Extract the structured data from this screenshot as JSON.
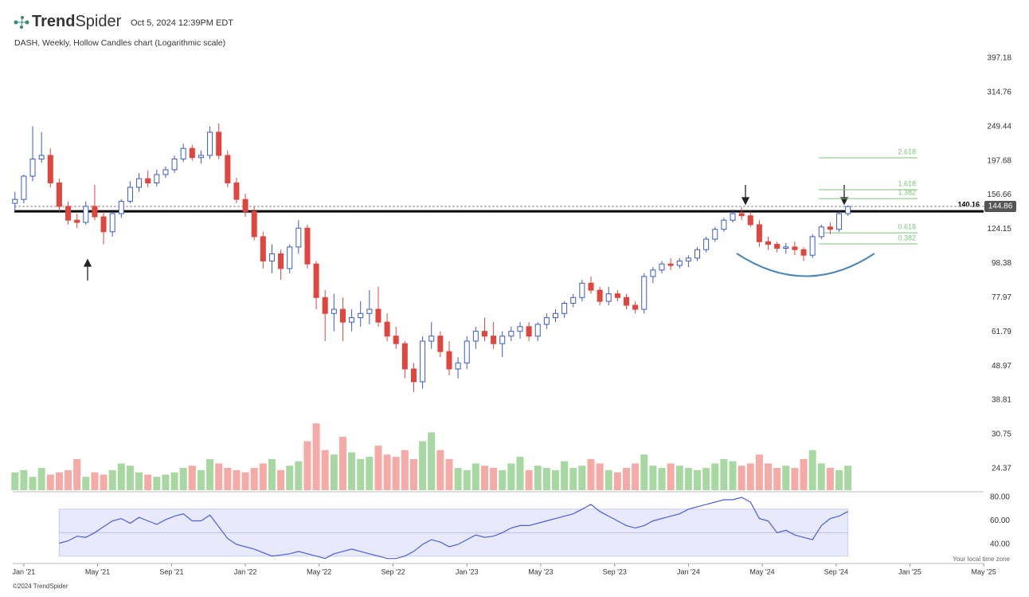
{
  "chart_data": {
    "type": "candlestick",
    "brand": [
      "Trend",
      "Spider"
    ],
    "timestamp": "Oct 5, 2024 12:39PM EDT",
    "title": "DASH, Weekly, Hollow Candles chart (Logarithmic scale)",
    "footer": "©2024 TrendSpider",
    "timezone_note": "Your local time zone",
    "log_scale": true,
    "up_color": "#3a5cc4",
    "down_color": "#e0453e",
    "xlim": [
      2020.95,
      2025.3
    ],
    "xticks": [
      {
        "value": 2021,
        "label": "Jan '21"
      },
      {
        "value": 2021.333,
        "label": "May '21"
      },
      {
        "value": 2021.667,
        "label": "Sep '21"
      },
      {
        "value": 2022,
        "label": "Jan '22"
      },
      {
        "value": 2022.333,
        "label": "May '22"
      },
      {
        "value": 2022.667,
        "label": "Sep '22"
      },
      {
        "value": 2023,
        "label": "Jan '23"
      },
      {
        "value": 2023.333,
        "label": "May '23"
      },
      {
        "value": 2023.667,
        "label": "Sep '23"
      },
      {
        "value": 2024,
        "label": "Jan '24"
      },
      {
        "value": 2024.333,
        "label": "May '24"
      },
      {
        "value": 2024.667,
        "label": "Sep '24"
      },
      {
        "value": 2025,
        "label": "Jan '25"
      },
      {
        "value": 2025.333,
        "label": "May '25"
      }
    ],
    "ylim": [
      21.05,
      426
    ],
    "yticks": [
      397.18,
      314.76,
      249.44,
      197.68,
      156.66,
      124.15,
      98.38,
      77.97,
      61.79,
      48.97,
      38.81,
      30.75,
      24.37
    ],
    "candles": {
      "x": [
        2020.96,
        2021,
        2021.04,
        2021.08,
        2021.12,
        2021.16,
        2021.2,
        2021.24,
        2021.28,
        2021.32,
        2021.36,
        2021.4,
        2021.44,
        2021.48,
        2021.52,
        2021.56,
        2021.6,
        2021.64,
        2021.68,
        2021.72,
        2021.76,
        2021.8,
        2021.84,
        2021.88,
        2021.92,
        2021.96,
        2022,
        2022.04,
        2022.08,
        2022.12,
        2022.16,
        2022.2,
        2022.24,
        2022.28,
        2022.32,
        2022.36,
        2022.4,
        2022.44,
        2022.48,
        2022.52,
        2022.56,
        2022.6,
        2022.64,
        2022.68,
        2022.72,
        2022.76,
        2022.8,
        2022.84,
        2022.88,
        2022.92,
        2022.96,
        2023,
        2023.04,
        2023.08,
        2023.12,
        2023.16,
        2023.2,
        2023.24,
        2023.28,
        2023.32,
        2023.36,
        2023.4,
        2023.44,
        2023.48,
        2023.52,
        2023.56,
        2023.6,
        2023.64,
        2023.68,
        2023.72,
        2023.76,
        2023.8,
        2023.84,
        2023.88,
        2023.92,
        2023.96,
        2024,
        2024.04,
        2024.08,
        2024.12,
        2024.16,
        2024.2,
        2024.24,
        2024.28,
        2024.32,
        2024.36,
        2024.4,
        2024.44,
        2024.48,
        2024.52,
        2024.56,
        2024.6,
        2024.64,
        2024.68,
        2024.72
      ],
      "open": [
        148,
        152,
        178,
        200,
        205,
        170,
        145,
        132,
        130,
        145,
        135,
        122,
        138,
        150,
        165,
        175,
        170,
        180,
        186,
        200,
        215,
        202,
        205,
        240,
        205,
        170,
        152,
        140,
        118,
        100,
        105,
        95,
        110,
        125,
        98,
        78,
        70,
        72,
        66,
        68,
        70,
        72,
        66,
        60,
        57,
        48,
        44,
        58,
        60,
        54,
        48,
        50,
        58,
        62,
        60,
        57,
        60,
        62,
        64,
        60,
        65,
        68,
        70,
        75,
        78,
        86,
        82,
        76,
        80,
        78,
        74,
        72,
        90,
        94,
        98,
        97,
        100,
        102,
        108,
        116,
        124,
        132,
        138,
        136,
        128,
        114,
        112,
        109,
        110,
        108,
        104,
        118,
        126,
        124,
        138
      ],
      "high": [
        160,
        180,
        250,
        240,
        215,
        175,
        150,
        138,
        150,
        168,
        140,
        140,
        152,
        172,
        182,
        185,
        186,
        190,
        205,
        222,
        220,
        212,
        250,
        255,
        212,
        176,
        158,
        145,
        122,
        112,
        108,
        112,
        132,
        128,
        100,
        82,
        80,
        78,
        72,
        76,
        82,
        84,
        70,
        64,
        58,
        50,
        60,
        66,
        62,
        58,
        52,
        60,
        64,
        68,
        66,
        62,
        64,
        66,
        66,
        66,
        70,
        72,
        76,
        80,
        88,
        90,
        84,
        84,
        82,
        80,
        76,
        92,
        96,
        100,
        102,
        102,
        104,
        110,
        118,
        126,
        134,
        142,
        144,
        140,
        132,
        118,
        114,
        113,
        114,
        110,
        120,
        128,
        130,
        140,
        146
      ],
      "low": [
        140,
        148,
        172,
        195,
        165,
        140,
        128,
        125,
        128,
        132,
        112,
        118,
        134,
        148,
        160,
        165,
        166,
        176,
        182,
        196,
        198,
        194,
        200,
        200,
        165,
        148,
        135,
        115,
        95,
        92,
        88,
        92,
        105,
        95,
        72,
        58,
        62,
        58,
        62,
        64,
        65,
        64,
        58,
        55,
        45,
        41,
        42,
        55,
        52,
        46,
        45,
        48,
        55,
        58,
        55,
        52,
        58,
        59,
        58,
        58,
        63,
        66,
        68,
        73,
        76,
        80,
        74,
        74,
        76,
        72,
        70,
        70,
        86,
        92,
        94,
        95,
        96,
        100,
        106,
        114,
        122,
        130,
        132,
        126,
        110,
        108,
        106,
        105,
        104,
        100,
        102,
        116,
        120,
        122,
        136
      ],
      "close": [
        152,
        178,
        200,
        205,
        170,
        145,
        132,
        130,
        145,
        135,
        122,
        138,
        150,
        165,
        175,
        170,
        180,
        186,
        200,
        215,
        202,
        205,
        240,
        205,
        170,
        152,
        140,
        118,
        100,
        105,
        95,
        110,
        125,
        98,
        78,
        70,
        72,
        66,
        68,
        70,
        72,
        66,
        60,
        57,
        48,
        44,
        58,
        60,
        54,
        48,
        50,
        58,
        62,
        60,
        57,
        60,
        62,
        64,
        60,
        65,
        68,
        70,
        75,
        78,
        86,
        82,
        76,
        80,
        78,
        74,
        72,
        90,
        94,
        98,
        97,
        100,
        102,
        108,
        116,
        124,
        132,
        138,
        136,
        128,
        114,
        112,
        109,
        110,
        108,
        104,
        118,
        126,
        124,
        138,
        144.86
      ]
    },
    "volume": {
      "up_color": "#a8d8a2",
      "down_color": "#f5aaa6",
      "ylim": [
        0,
        34
      ],
      "values": [
        8,
        9,
        6,
        10,
        7,
        8,
        9,
        14,
        6,
        8,
        7,
        9,
        12,
        11,
        8,
        7,
        6,
        7,
        8,
        10,
        11,
        9,
        14,
        12,
        10,
        9,
        8,
        10,
        12,
        14,
        9,
        11,
        13,
        22,
        30,
        18,
        16,
        24,
        17,
        14,
        15,
        20,
        16,
        15,
        18,
        14,
        22,
        26,
        18,
        14,
        10,
        9,
        12,
        11,
        10,
        9,
        12,
        15,
        9,
        11,
        10,
        9,
        13,
        10,
        11,
        14,
        12,
        9,
        8,
        10,
        12,
        16,
        11,
        10,
        12,
        11,
        10,
        9,
        10,
        12,
        14,
        13,
        11,
        12,
        16,
        12,
        10,
        11,
        10,
        14,
        18,
        12,
        10,
        9,
        11
      ]
    },
    "rsi": {
      "color": "#4a5de0",
      "band": [
        30,
        70
      ],
      "midline": 50,
      "ylim": [
        24.4,
        84.1
      ],
      "yticks": [
        {
          "value": 80,
          "label": "80.00"
        },
        {
          "value": 60,
          "label": "60.00"
        },
        {
          "value": 40,
          "label": "40.00"
        }
      ],
      "values": [
        null,
        null,
        null,
        null,
        null,
        41,
        43,
        47,
        46,
        50,
        55,
        60,
        62,
        58,
        63,
        60,
        57,
        61,
        64,
        66,
        60,
        60,
        65,
        55,
        45,
        40,
        38,
        36,
        33,
        30,
        31,
        32,
        34,
        32,
        30,
        28,
        32,
        34,
        36,
        34,
        32,
        30,
        28,
        28,
        30,
        34,
        40,
        44,
        42,
        38,
        40,
        44,
        48,
        46,
        47,
        50,
        54,
        56,
        56,
        58,
        60,
        62,
        64,
        66,
        70,
        74,
        68,
        64,
        60,
        56,
        54,
        56,
        60,
        62,
        64,
        66,
        70,
        72,
        74,
        76,
        78,
        78,
        80,
        76,
        62,
        60,
        50,
        52,
        48,
        46,
        44,
        56,
        62,
        64,
        68
      ]
    },
    "level": 140.16,
    "last_price": 144.86,
    "fib_levels": [
      {
        "ratio": 2.618,
        "price": 201.7
      },
      {
        "ratio": 1.618,
        "price": 162.4
      },
      {
        "ratio": 1.382,
        "price": 152.9
      },
      {
        "ratio": 0.618,
        "price": 121.1
      },
      {
        "ratio": 0.382,
        "price": 112.3
      }
    ],
    "fib_color": "#7cc47a"
  }
}
